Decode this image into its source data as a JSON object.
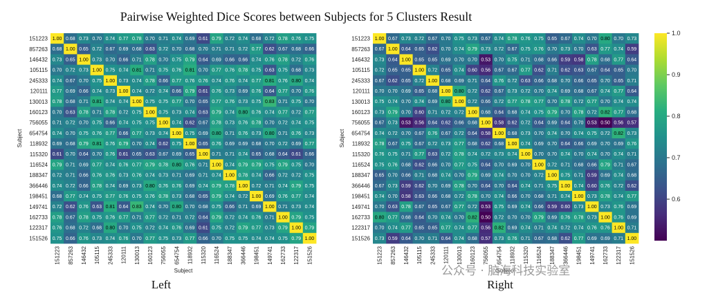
{
  "chart_data": {
    "type": "heatmap",
    "title": "Pairwise Weighted Dice Scores between Subjects for 5 Clusters Result",
    "subjects": [
      "151223",
      "857263",
      "146432",
      "105115",
      "245333",
      "120111",
      "130013",
      "160123",
      "756055",
      "654754",
      "118932",
      "115320",
      "116524",
      "188347",
      "366446",
      "198451",
      "149741",
      "162733",
      "122317",
      "151526"
    ],
    "xlabel": "Subject",
    "ylabel": "Subject",
    "colormap": "viridis",
    "colorbar": {
      "min": 0.5,
      "max": 1.0,
      "ticks": [
        "1.0",
        "0.9",
        "0.8",
        "0.7",
        "0.6"
      ]
    },
    "panels": [
      {
        "caption": "Left",
        "matrix": [
          [
            1.0,
            0.68,
            0.73,
            0.7,
            0.74,
            0.77,
            0.78,
            0.7,
            0.71,
            0.74,
            0.69,
            0.61,
            0.79,
            0.72,
            0.74,
            0.68,
            0.72,
            0.78,
            0.76,
            0.75
          ],
          [
            0.68,
            1.0,
            0.65,
            0.72,
            0.67,
            0.69,
            0.68,
            0.63,
            0.72,
            0.7,
            0.68,
            0.7,
            0.71,
            0.71,
            0.72,
            0.77,
            0.62,
            0.67,
            0.68,
            0.66
          ],
          [
            0.73,
            0.65,
            1.0,
            0.73,
            0.7,
            0.66,
            0.71,
            0.78,
            0.7,
            0.75,
            0.79,
            0.64,
            0.69,
            0.66,
            0.66,
            0.74,
            0.76,
            0.78,
            0.72,
            0.76
          ],
          [
            0.7,
            0.72,
            0.73,
            1.0,
            0.75,
            0.74,
            0.81,
            0.71,
            0.75,
            0.76,
            0.81,
            0.7,
            0.77,
            0.76,
            0.78,
            0.75,
            0.63,
            0.75,
            0.68,
            0.73
          ],
          [
            0.74,
            0.67,
            0.7,
            0.75,
            1.0,
            0.73,
            0.74,
            0.78,
            0.66,
            0.77,
            0.76,
            0.76,
            0.74,
            0.76,
            0.74,
            0.77,
            0.81,
            0.76,
            0.8,
            0.74
          ],
          [
            0.77,
            0.69,
            0.66,
            0.74,
            0.73,
            1.0,
            0.74,
            0.72,
            0.74,
            0.66,
            0.79,
            0.61,
            0.76,
            0.73,
            0.69,
            0.76,
            0.64,
            0.77,
            0.7,
            0.76
          ],
          [
            0.78,
            0.68,
            0.71,
            0.81,
            0.74,
            0.74,
            1.0,
            0.75,
            0.75,
            0.77,
            0.7,
            0.65,
            0.77,
            0.76,
            0.73,
            0.75,
            0.83,
            0.71,
            0.75,
            0.7
          ],
          [
            0.7,
            0.63,
            0.78,
            0.71,
            0.78,
            0.72,
            0.75,
            1.0,
            0.75,
            0.73,
            0.74,
            0.63,
            0.79,
            0.74,
            0.8,
            0.76,
            0.74,
            0.77,
            0.72,
            0.77
          ],
          [
            0.71,
            0.72,
            0.7,
            0.75,
            0.66,
            0.74,
            0.75,
            0.75,
            1.0,
            0.74,
            0.62,
            0.67,
            0.78,
            0.73,
            0.76,
            0.78,
            0.7,
            0.72,
            0.74,
            0.75
          ],
          [
            0.74,
            0.7,
            0.75,
            0.76,
            0.77,
            0.66,
            0.77,
            0.73,
            0.74,
            1.0,
            0.75,
            0.69,
            0.8,
            0.71,
            0.76,
            0.73,
            0.8,
            0.71,
            0.76,
            0.73
          ],
          [
            0.69,
            0.68,
            0.79,
            0.81,
            0.76,
            0.79,
            0.7,
            0.74,
            0.62,
            0.75,
            1.0,
            0.65,
            0.76,
            0.69,
            0.69,
            0.68,
            0.7,
            0.72,
            0.69,
            0.77
          ],
          [
            0.61,
            0.7,
            0.64,
            0.7,
            0.76,
            0.61,
            0.65,
            0.63,
            0.67,
            0.69,
            0.65,
            1.0,
            0.71,
            0.71,
            0.74,
            0.65,
            0.68,
            0.64,
            0.61,
            0.66
          ],
          [
            0.79,
            0.71,
            0.69,
            0.77,
            0.74,
            0.76,
            0.77,
            0.79,
            0.78,
            0.8,
            0.76,
            0.71,
            1.0,
            0.74,
            0.79,
            0.79,
            0.75,
            0.79,
            0.75,
            0.7
          ],
          [
            0.72,
            0.71,
            0.66,
            0.76,
            0.76,
            0.73,
            0.76,
            0.74,
            0.73,
            0.71,
            0.69,
            0.71,
            0.74,
            1.0,
            0.78,
            0.74,
            0.66,
            0.72,
            0.72,
            0.75
          ],
          [
            0.74,
            0.72,
            0.66,
            0.78,
            0.74,
            0.69,
            0.73,
            0.8,
            0.76,
            0.76,
            0.69,
            0.74,
            0.79,
            0.78,
            1.0,
            0.72,
            0.71,
            0.74,
            0.79,
            0.75
          ],
          [
            0.68,
            0.77,
            0.74,
            0.75,
            0.77,
            0.76,
            0.75,
            0.76,
            0.78,
            0.73,
            0.68,
            0.65,
            0.79,
            0.74,
            0.72,
            1.0,
            0.69,
            0.76,
            0.77,
            0.74
          ],
          [
            0.72,
            0.62,
            0.76,
            0.63,
            0.81,
            0.64,
            0.83,
            0.74,
            0.7,
            0.8,
            0.7,
            0.68,
            0.75,
            0.66,
            0.71,
            0.69,
            1.0,
            0.71,
            0.73,
            0.74
          ],
          [
            0.78,
            0.67,
            0.78,
            0.75,
            0.76,
            0.77,
            0.71,
            0.77,
            0.72,
            0.71,
            0.72,
            0.64,
            0.79,
            0.72,
            0.74,
            0.76,
            0.71,
            1.0,
            0.79,
            0.75
          ],
          [
            0.76,
            0.68,
            0.72,
            0.68,
            0.8,
            0.7,
            0.75,
            0.72,
            0.74,
            0.76,
            0.69,
            0.61,
            0.75,
            0.72,
            0.79,
            0.77,
            0.73,
            0.79,
            1.0,
            0.79
          ],
          [
            0.75,
            0.66,
            0.76,
            0.73,
            0.74,
            0.76,
            0.7,
            0.77,
            0.75,
            0.73,
            0.77,
            0.66,
            0.7,
            0.75,
            0.75,
            0.74,
            0.74,
            0.75,
            0.79,
            1.0
          ]
        ]
      },
      {
        "caption": "Right",
        "matrix": [
          [
            1.0,
            0.67,
            0.73,
            0.72,
            0.67,
            0.7,
            0.75,
            0.73,
            0.67,
            0.74,
            0.78,
            0.76,
            0.75,
            0.65,
            0.67,
            0.74,
            0.7,
            0.8,
            0.7,
            0.73
          ],
          [
            0.67,
            1.0,
            0.64,
            0.65,
            0.62,
            0.7,
            0.74,
            0.79,
            0.73,
            0.72,
            0.67,
            0.75,
            0.76,
            0.7,
            0.73,
            0.7,
            0.63,
            0.77,
            0.74,
            0.59
          ],
          [
            0.73,
            0.64,
            1.0,
            0.65,
            0.65,
            0.69,
            0.7,
            0.7,
            0.53,
            0.7,
            0.75,
            0.71,
            0.68,
            0.66,
            0.59,
            0.58,
            0.78,
            0.68,
            0.77,
            0.64
          ],
          [
            0.72,
            0.65,
            0.65,
            1.0,
            0.72,
            0.65,
            0.74,
            0.6,
            0.56,
            0.67,
            0.67,
            0.77,
            0.62,
            0.71,
            0.62,
            0.63,
            0.67,
            0.64,
            0.65,
            0.7
          ],
          [
            0.67,
            0.62,
            0.65,
            0.72,
            1.0,
            0.68,
            0.69,
            0.71,
            0.64,
            0.76,
            0.72,
            0.63,
            0.66,
            0.68,
            0.7,
            0.66,
            0.65,
            0.7,
            0.65,
            0.71
          ],
          [
            0.7,
            0.7,
            0.69,
            0.65,
            0.68,
            1.0,
            0.8,
            0.72,
            0.62,
            0.67,
            0.73,
            0.72,
            0.7,
            0.74,
            0.69,
            0.68,
            0.67,
            0.74,
            0.77,
            0.64
          ],
          [
            0.75,
            0.74,
            0.7,
            0.74,
            0.69,
            0.8,
            1.0,
            0.72,
            0.66,
            0.72,
            0.77,
            0.78,
            0.77,
            0.7,
            0.78,
            0.72,
            0.77,
            0.7,
            0.74,
            0.74
          ],
          [
            0.73,
            0.79,
            0.7,
            0.6,
            0.71,
            0.72,
            0.72,
            1.0,
            0.68,
            0.64,
            0.68,
            0.74,
            0.75,
            0.79,
            0.7,
            0.78,
            0.72,
            0.82,
            0.77,
            0.68
          ],
          [
            0.67,
            0.73,
            0.53,
            0.56,
            0.64,
            0.62,
            0.66,
            0.68,
            1.0,
            0.58,
            0.62,
            0.72,
            0.64,
            0.69,
            0.64,
            0.7,
            0.53,
            0.5,
            0.56,
            0.57
          ],
          [
            0.74,
            0.72,
            0.7,
            0.67,
            0.76,
            0.67,
            0.72,
            0.64,
            0.58,
            1.0,
            0.68,
            0.73,
            0.7,
            0.74,
            0.7,
            0.74,
            0.75,
            0.72,
            0.82,
            0.73
          ],
          [
            0.78,
            0.67,
            0.75,
            0.67,
            0.72,
            0.73,
            0.77,
            0.68,
            0.62,
            0.68,
            1.0,
            0.74,
            0.69,
            0.7,
            0.64,
            0.66,
            0.69,
            0.7,
            0.69,
            0.76
          ],
          [
            0.76,
            0.75,
            0.71,
            0.77,
            0.63,
            0.72,
            0.78,
            0.74,
            0.72,
            0.73,
            0.74,
            1.0,
            0.7,
            0.7,
            0.74,
            0.7,
            0.74,
            0.7,
            0.74,
            0.71
          ],
          [
            0.75,
            0.76,
            0.68,
            0.62,
            0.66,
            0.7,
            0.77,
            0.75,
            0.64,
            0.7,
            0.69,
            0.7,
            1.0,
            0.72,
            0.71,
            0.68,
            0.66,
            0.79,
            0.71,
            0.67
          ],
          [
            0.65,
            0.7,
            0.66,
            0.71,
            0.68,
            0.74,
            0.7,
            0.79,
            0.69,
            0.74,
            0.7,
            0.7,
            0.72,
            1.0,
            0.75,
            0.71,
            0.59,
            0.69,
            0.74,
            0.68
          ],
          [
            0.67,
            0.73,
            0.59,
            0.62,
            0.7,
            0.69,
            0.78,
            0.7,
            0.64,
            0.7,
            0.64,
            0.74,
            0.71,
            0.75,
            1.0,
            0.74,
            0.6,
            0.76,
            0.72,
            0.62
          ],
          [
            0.74,
            0.7,
            0.58,
            0.63,
            0.66,
            0.68,
            0.72,
            0.78,
            0.7,
            0.74,
            0.66,
            0.7,
            0.68,
            0.71,
            0.74,
            1.0,
            0.73,
            0.78,
            0.74,
            0.77
          ],
          [
            0.7,
            0.63,
            0.78,
            0.67,
            0.65,
            0.67,
            0.77,
            0.72,
            0.53,
            0.75,
            0.69,
            0.74,
            0.66,
            0.59,
            0.6,
            0.73,
            1.0,
            0.73,
            0.76,
            0.69
          ],
          [
            0.8,
            0.77,
            0.68,
            0.64,
            0.7,
            0.74,
            0.7,
            0.82,
            0.5,
            0.72,
            0.7,
            0.7,
            0.79,
            0.69,
            0.76,
            0.78,
            0.73,
            1.0,
            0.76,
            0.69
          ],
          [
            0.7,
            0.74,
            0.77,
            0.65,
            0.65,
            0.77,
            0.74,
            0.77,
            0.56,
            0.82,
            0.69,
            0.74,
            0.71,
            0.74,
            0.72,
            0.74,
            0.76,
            0.76,
            1.0,
            0.71
          ],
          [
            0.73,
            0.59,
            0.64,
            0.7,
            0.71,
            0.64,
            0.74,
            0.68,
            0.57,
            0.73,
            0.76,
            0.71,
            0.67,
            0.68,
            0.62,
            0.77,
            0.69,
            0.69,
            0.71,
            1.0
          ]
        ]
      }
    ]
  },
  "watermark": "公众号 · 脑海科技实验室"
}
